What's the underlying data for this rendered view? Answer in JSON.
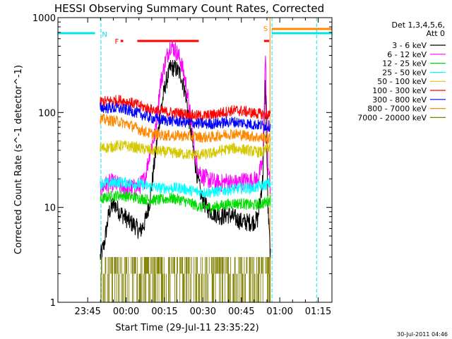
{
  "chart_data": {
    "type": "line",
    "title": "HESSI Observing Summary Count Rates, Corrected",
    "xlabel": "Start Time (29-Jul-11 23:35:22)",
    "ylabel": "Corrected Count Rate (s^-1 detector^-1)",
    "yscale": "log",
    "ylim": [
      1,
      1000
    ],
    "xlim_minutes": [
      -2,
      105
    ],
    "grid": false,
    "legend_position": "top-right",
    "x_ticks": [
      {
        "label": "23:45",
        "minute": 9.63
      },
      {
        "label": "00:00",
        "minute": 24.63
      },
      {
        "label": "00:15",
        "minute": 39.63
      },
      {
        "label": "00:30",
        "minute": 54.63
      },
      {
        "label": "00:45",
        "minute": 69.63
      },
      {
        "label": "01:00",
        "minute": 84.63
      },
      {
        "label": "01:15",
        "minute": 99.63
      }
    ],
    "y_ticks": [
      {
        "label": "1",
        "value": 1
      },
      {
        "label": "10",
        "value": 10
      },
      {
        "label": "100",
        "value": 100
      },
      {
        "label": "1000",
        "value": 1000
      }
    ],
    "legend_header": [
      "Det 1,3,4,5,6,",
      "Att 0"
    ],
    "series": [
      {
        "name": "3 - 6 keV",
        "color": "#000000",
        "x": [
          14.5,
          16,
          18,
          20,
          22,
          24,
          26,
          28,
          30,
          32,
          34,
          36,
          38,
          40,
          42,
          44,
          46,
          48,
          50,
          52,
          54,
          56,
          58,
          60,
          62,
          64,
          66,
          68,
          70,
          72,
          74,
          76,
          78,
          79,
          80,
          81
        ],
        "values": [
          3,
          4,
          9,
          11,
          9,
          8,
          7,
          6.5,
          5.5,
          7,
          12,
          35,
          100,
          200,
          300,
          290,
          250,
          150,
          60,
          25,
          13,
          10,
          9,
          8.5,
          8,
          8.5,
          8,
          7.5,
          7,
          7,
          7,
          7.5,
          20,
          220,
          10,
          3
        ]
      },
      {
        "name": "6 - 12 keV",
        "color": "#ff00ff",
        "x": [
          14.5,
          16,
          18,
          20,
          22,
          24,
          26,
          28,
          30,
          32,
          34,
          36,
          38,
          40,
          42,
          44,
          46,
          48,
          50,
          52,
          54,
          56,
          58,
          60,
          62,
          64,
          66,
          68,
          70,
          72,
          74,
          76,
          78,
          79,
          80,
          81
        ],
        "values": [
          15,
          17,
          18,
          18,
          17,
          16,
          16,
          16,
          17,
          20,
          40,
          60,
          200,
          350,
          520,
          450,
          350,
          200,
          80,
          30,
          22,
          20,
          19,
          18,
          18,
          19,
          18,
          18,
          19,
          19,
          19,
          20,
          30,
          420,
          30,
          15
        ]
      },
      {
        "name": "12 - 25 keV",
        "color": "#00dd00",
        "x": [
          14.5,
          18,
          22,
          26,
          30,
          34,
          38,
          42,
          46,
          50,
          54,
          58,
          62,
          66,
          70,
          74,
          78,
          81
        ],
        "values": [
          12,
          13,
          13.5,
          13,
          12.5,
          12,
          12,
          12.5,
          12,
          11,
          10,
          10,
          10.5,
          11,
          11,
          10.5,
          11,
          12
        ]
      },
      {
        "name": "25 - 50 keV",
        "color": "#00ffff",
        "x": [
          14.5,
          18,
          22,
          26,
          30,
          34,
          38,
          42,
          46,
          50,
          54,
          58,
          62,
          66,
          70,
          74,
          78,
          81
        ],
        "values": [
          18,
          18,
          18.5,
          18,
          17.5,
          16.5,
          16,
          16,
          16,
          15,
          14.5,
          14.5,
          15,
          15.5,
          16,
          16,
          17,
          18
        ]
      },
      {
        "name": "50 - 100 keV",
        "color": "#d4c800",
        "x": [
          14.5,
          18,
          22,
          26,
          30,
          34,
          38,
          42,
          46,
          50,
          54,
          58,
          62,
          66,
          70,
          74,
          78,
          81
        ],
        "values": [
          42,
          43,
          45,
          44,
          42,
          40,
          39,
          38,
          37,
          36,
          36,
          37,
          40,
          42,
          41,
          39,
          38,
          45
        ]
      },
      {
        "name": "100 - 300 keV",
        "color": "#ff0000",
        "x": [
          14.5,
          18,
          22,
          26,
          30,
          34,
          38,
          42,
          46,
          50,
          54,
          58,
          62,
          66,
          70,
          74,
          78,
          81
        ],
        "values": [
          130,
          132,
          135,
          128,
          118,
          108,
          103,
          100,
          98,
          94,
          92,
          94,
          100,
          105,
          104,
          99,
          96,
          95
        ]
      },
      {
        "name": "300 - 800 keV",
        "color": "#0000ff",
        "x": [
          14.5,
          18,
          22,
          26,
          30,
          34,
          38,
          42,
          46,
          50,
          54,
          58,
          62,
          66,
          70,
          74,
          78,
          81
        ],
        "values": [
          112,
          112,
          110,
          105,
          97,
          88,
          84,
          82,
          80,
          78,
          76,
          76,
          78,
          80,
          78,
          75,
          73,
          72
        ]
      },
      {
        "name": "800 - 7000 keV",
        "color": "#ff8800",
        "x": [
          14.5,
          18,
          22,
          26,
          30,
          34,
          38,
          42,
          46,
          50,
          54,
          58,
          62,
          66,
          70,
          74,
          78,
          81
        ],
        "values": [
          85,
          83,
          80,
          74,
          66,
          60,
          58,
          57,
          57,
          56,
          55,
          55,
          58,
          60,
          58,
          56,
          54,
          53
        ]
      },
      {
        "name": "7000 - 20000 keV",
        "color": "#808000",
        "x": [],
        "values": []
      }
    ],
    "annotations": [
      "N",
      "F",
      "S"
    ]
  },
  "footer": {
    "date_stamp": "30-Jul-2011 04:46"
  }
}
